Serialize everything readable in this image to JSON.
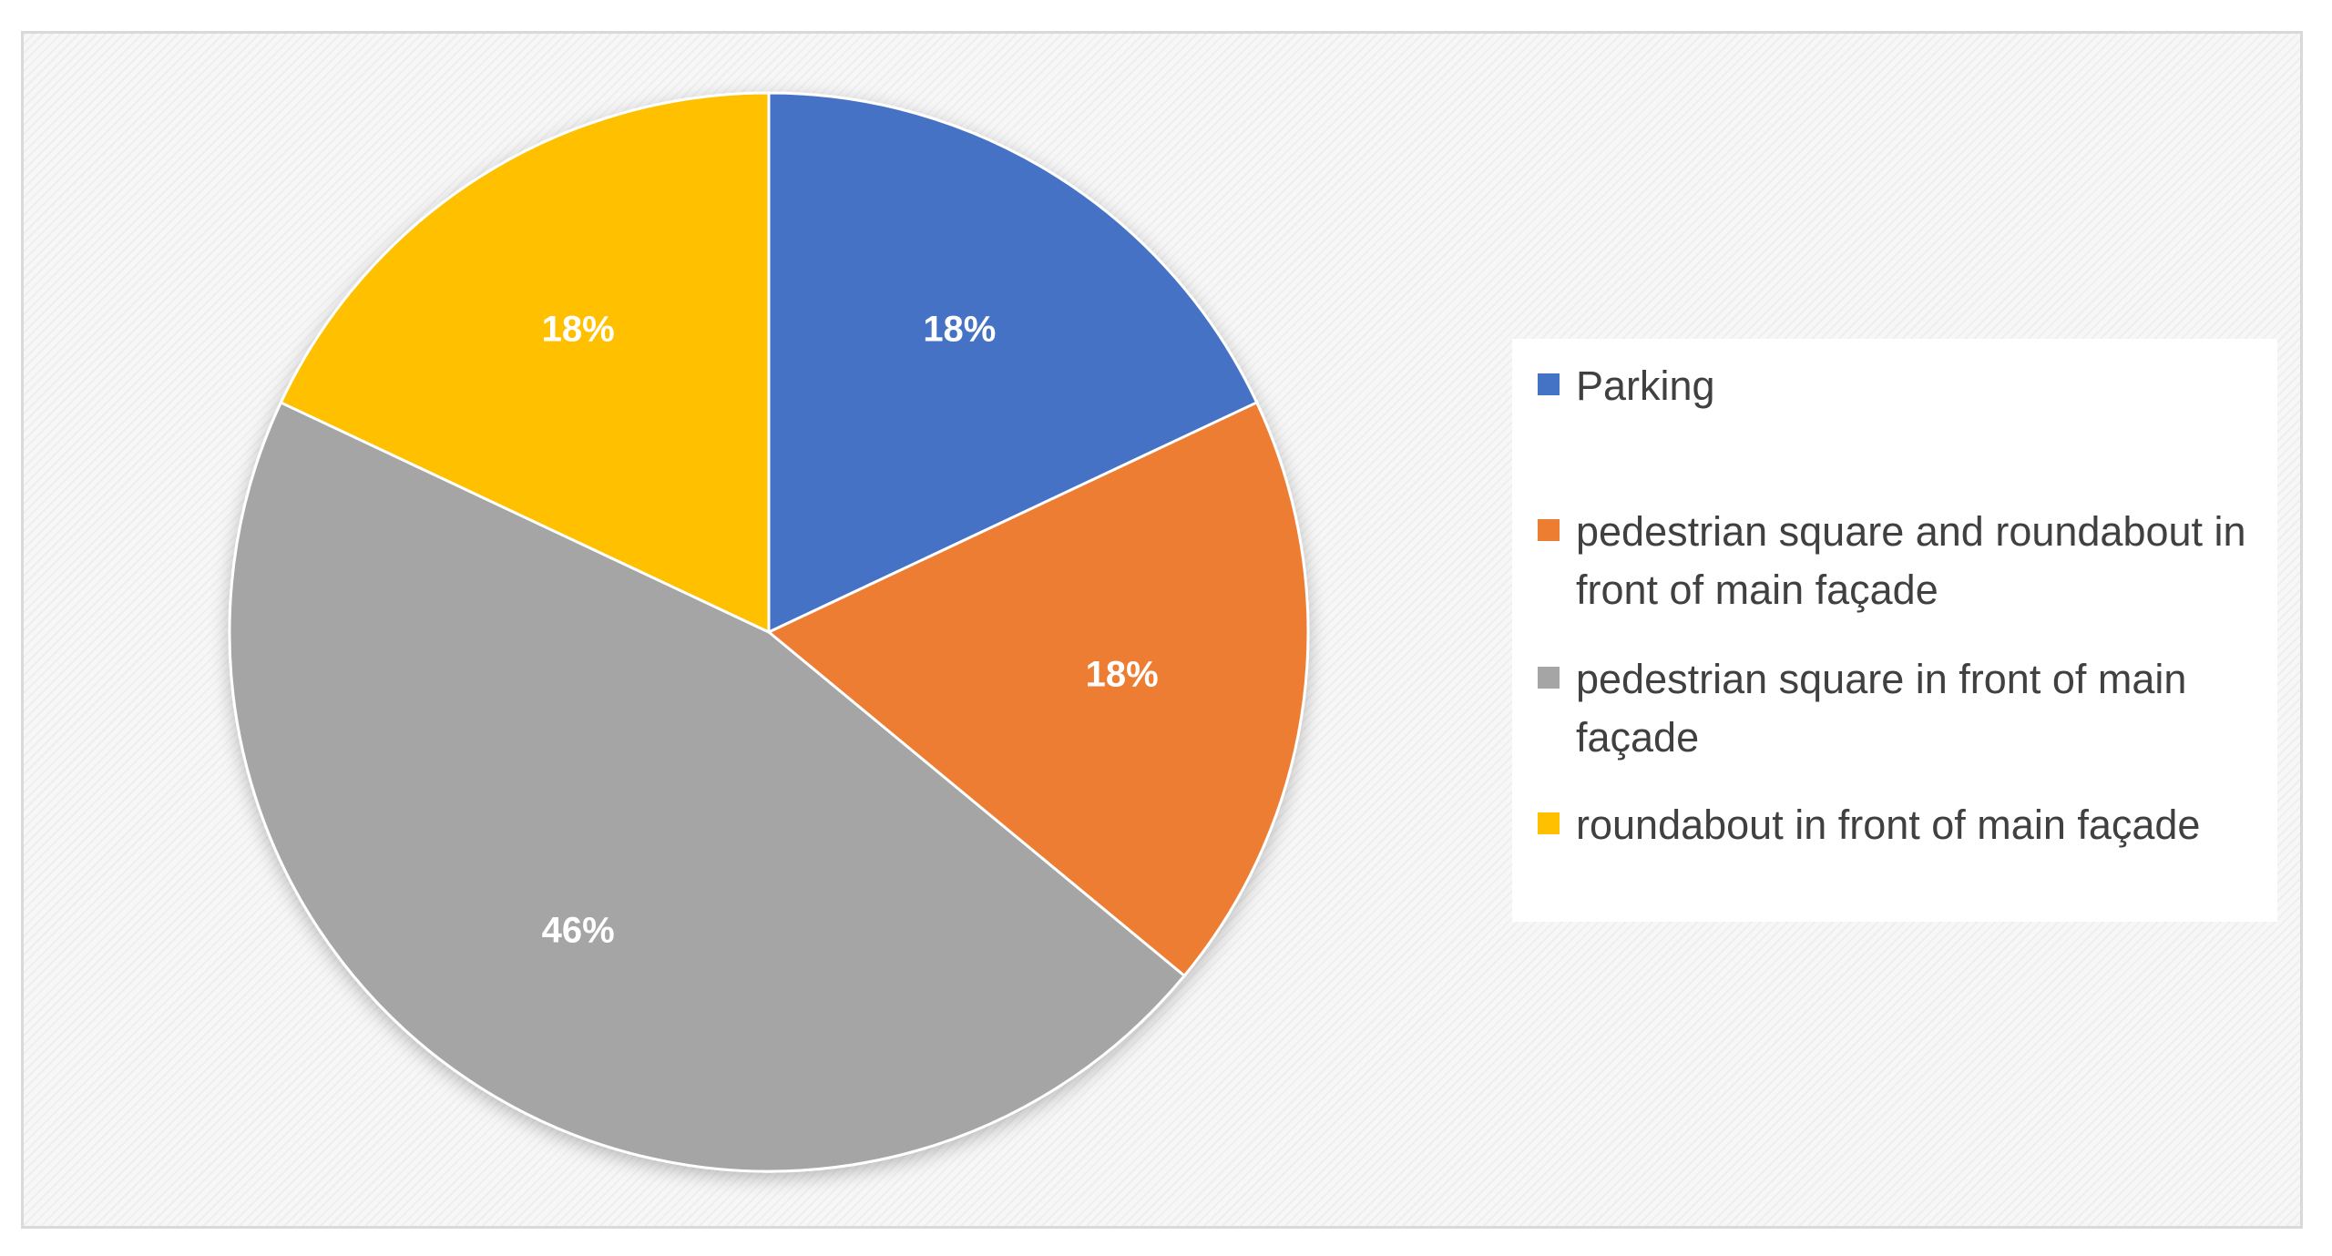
{
  "chart_data": {
    "type": "pie",
    "title": "",
    "legend_position": "right",
    "slices": [
      {
        "name": "Parking",
        "value": 18,
        "label": "18%",
        "color": "#4472C4"
      },
      {
        "name": "pedestrian square and roundabout in front of main façade",
        "value": 18,
        "label": "18%",
        "color": "#ED7D31"
      },
      {
        "name": "pedestrian square in front of main façade",
        "value": 46,
        "label": "46%",
        "color": "#A5A5A5"
      },
      {
        "name": "roundabout in front of main façade",
        "value": 18,
        "label": "18%",
        "color": "#FFC000"
      }
    ]
  }
}
